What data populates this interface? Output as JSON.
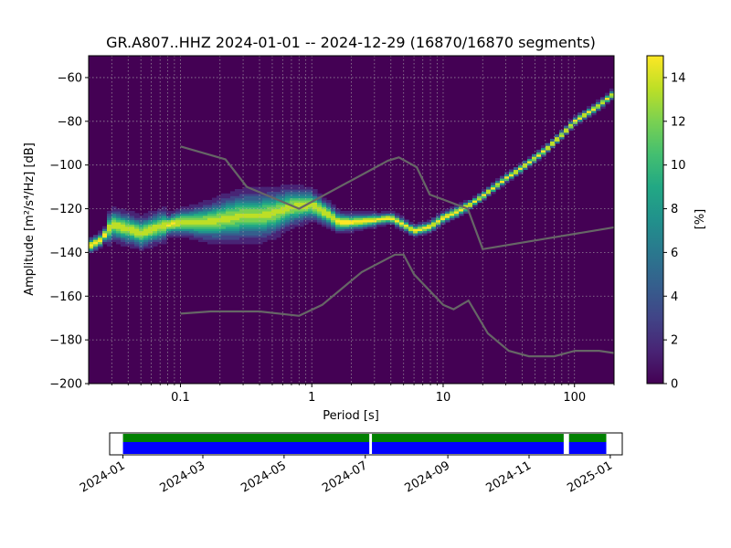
{
  "chart_data": [
    {
      "type": "heatmap",
      "title": "GR.A807..HHZ   2024-01-01 -- 2024-12-29  (16870/16870 segments)",
      "xlabel": "Period [s]",
      "ylabel": "Amplitude [m²/s⁴/Hz] [dB]",
      "x_scale": "log",
      "xlim": [
        0.02,
        200
      ],
      "ylim": [
        -200,
        -50
      ],
      "x_ticks": [
        0.1,
        1,
        10,
        100
      ],
      "x_tick_labels": [
        "0.1",
        "1",
        "10",
        "100"
      ],
      "y_ticks": [
        -200,
        -180,
        -160,
        -140,
        -120,
        -100,
        -80,
        -60
      ],
      "y_tick_labels": [
        "−200",
        "−180",
        "−160",
        "−140",
        "−120",
        "−100",
        "−80",
        "−60"
      ],
      "grid": true,
      "colorbar": {
        "label": "[%]",
        "min": 0,
        "max": 15,
        "ticks": [
          0,
          2,
          4,
          6,
          8,
          10,
          12,
          14
        ],
        "tick_labels": [
          "0",
          "2",
          "4",
          "6",
          "8",
          "10",
          "12",
          "14"
        ]
      },
      "mode_curve": [
        [
          0.02,
          -137
        ],
        [
          0.025,
          -134
        ],
        [
          0.03,
          -127
        ],
        [
          0.04,
          -129
        ],
        [
          0.05,
          -131
        ],
        [
          0.07,
          -128
        ],
        [
          0.1,
          -126
        ],
        [
          0.15,
          -126
        ],
        [
          0.2,
          -125
        ],
        [
          0.3,
          -123
        ],
        [
          0.4,
          -123
        ],
        [
          0.5,
          -122
        ],
        [
          0.7,
          -119
        ],
        [
          1.0,
          -118
        ],
        [
          1.3,
          -122
        ],
        [
          1.6,
          -126
        ],
        [
          2.0,
          -126
        ],
        [
          3.0,
          -125
        ],
        [
          4.0,
          -124
        ],
        [
          5.0,
          -127
        ],
        [
          6.0,
          -130
        ],
        [
          8.0,
          -128
        ],
        [
          10,
          -124
        ],
        [
          13,
          -121
        ],
        [
          16,
          -118
        ],
        [
          20,
          -114
        ],
        [
          30,
          -106
        ],
        [
          40,
          -101
        ],
        [
          60,
          -93
        ],
        [
          80,
          -86
        ],
        [
          100,
          -80
        ],
        [
          150,
          -73
        ],
        [
          200,
          -67
        ]
      ],
      "nlnm": [
        [
          0.1,
          -168
        ],
        [
          0.17,
          -167
        ],
        [
          0.4,
          -167
        ],
        [
          0.8,
          -169
        ],
        [
          1.2,
          -164
        ],
        [
          2.4,
          -149
        ],
        [
          4.3,
          -141
        ],
        [
          5.0,
          -141
        ],
        [
          6.0,
          -150
        ],
        [
          10,
          -164
        ],
        [
          12,
          -166
        ],
        [
          15.6,
          -162
        ],
        [
          21.9,
          -177
        ],
        [
          31.6,
          -185
        ],
        [
          45,
          -187.5
        ],
        [
          70,
          -187.5
        ],
        [
          101,
          -185
        ],
        [
          154,
          -185
        ],
        [
          200,
          -186
        ]
      ],
      "nhnm": [
        [
          0.1,
          -91.5
        ],
        [
          0.22,
          -97.4
        ],
        [
          0.32,
          -110
        ],
        [
          0.8,
          -120
        ],
        [
          3.8,
          -98
        ],
        [
          4.6,
          -96.5
        ],
        [
          6.3,
          -101
        ],
        [
          7.9,
          -113.5
        ],
        [
          15.4,
          -120
        ],
        [
          20,
          -138.5
        ],
        [
          200,
          -128.5
        ]
      ]
    },
    {
      "type": "bar",
      "x_tick_labels": [
        "2024-01",
        "2024-03",
        "2024-05",
        "2024-07",
        "2024-09",
        "2024-11",
        "2025-01"
      ],
      "x_ticks": [
        "2024-01-01",
        "2024-03-01",
        "2024-05-01",
        "2024-07-01",
        "2024-09-01",
        "2024-11-01",
        "2025-01-01"
      ],
      "xlim": [
        "2023-12-22",
        "2025-01-10"
      ],
      "data_coverage": [
        [
          "2024-01-01",
          "2024-07-04"
        ],
        [
          "2024-07-06",
          "2024-11-27"
        ],
        [
          "2024-12-01",
          "2024-12-29"
        ]
      ],
      "colors": {
        "processed": "#0000ff",
        "available": "#008000"
      }
    }
  ]
}
